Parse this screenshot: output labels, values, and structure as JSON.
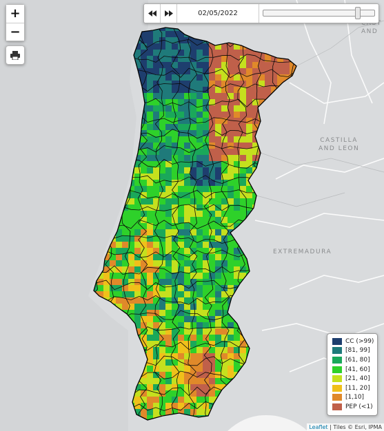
{
  "map": {
    "controls": {
      "zoom_in": "+",
      "zoom_out": "−"
    },
    "timebar": {
      "date": "02/05/2022",
      "position": 0.93
    },
    "regions": [
      {
        "name": "castilla-leon",
        "text": "CASTILLA\nAND LEON"
      },
      {
        "name": "extremadura",
        "text": "EXTREMADURA"
      },
      {
        "name": "castilla-edge",
        "text": "CAST\nAND"
      }
    ],
    "legend": {
      "title": "",
      "items": [
        {
          "label": "CC (>99)",
          "color": "#1e3e6e"
        },
        {
          "label": "[81, 99]",
          "color": "#1f7a7a"
        },
        {
          "label": "[61, 80]",
          "color": "#1aa85a"
        },
        {
          "label": "[41, 60]",
          "color": "#2ed12a"
        },
        {
          "label": "[21, 40]",
          "color": "#c5e01e"
        },
        {
          "label": "[11, 20]",
          "color": "#f0c01a"
        },
        {
          "label": "[1,10]",
          "color": "#e0892a"
        },
        {
          "label": "PEP (<1)",
          "color": "#c0604a"
        }
      ]
    },
    "attribution": {
      "link": "Leaflet",
      "rest": " | Tiles © Esri, IPMA"
    }
  }
}
